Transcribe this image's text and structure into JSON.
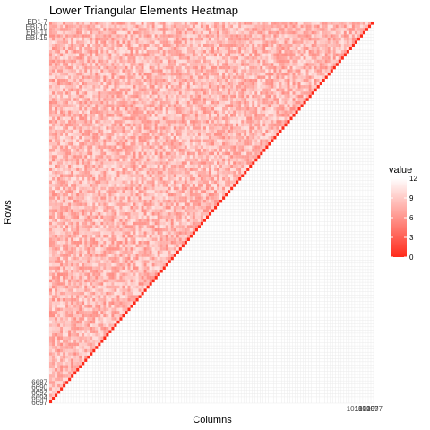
{
  "chart_data": {
    "type": "heatmap",
    "title": "Lower Triangular Elements Heatmap",
    "xlabel": "Columns",
    "ylabel": "Rows",
    "legend": {
      "title": "value",
      "ticks": [
        0,
        3,
        6,
        9,
        12
      ],
      "low_color": "#ff2a1a",
      "high_color": "#ffffff",
      "placement": "right"
    },
    "grid": true,
    "grid_color": "#ebebeb",
    "row_labels_top": [
      "ED1-7",
      "EBI-10",
      "EBI-11",
      "EBI-15"
    ],
    "row_labels_bottom": [
      "6687",
      "6690",
      "6692",
      "6694",
      "6697"
    ],
    "x_labels_right": [
      "1018",
      "107",
      "1019",
      "1020",
      "1057",
      "1097"
    ],
    "matrix_size": 120,
    "value_range": [
      0,
      12
    ],
    "typical_lower_value": 8,
    "diagonal_value": 0,
    "upper_triangle": "empty"
  }
}
